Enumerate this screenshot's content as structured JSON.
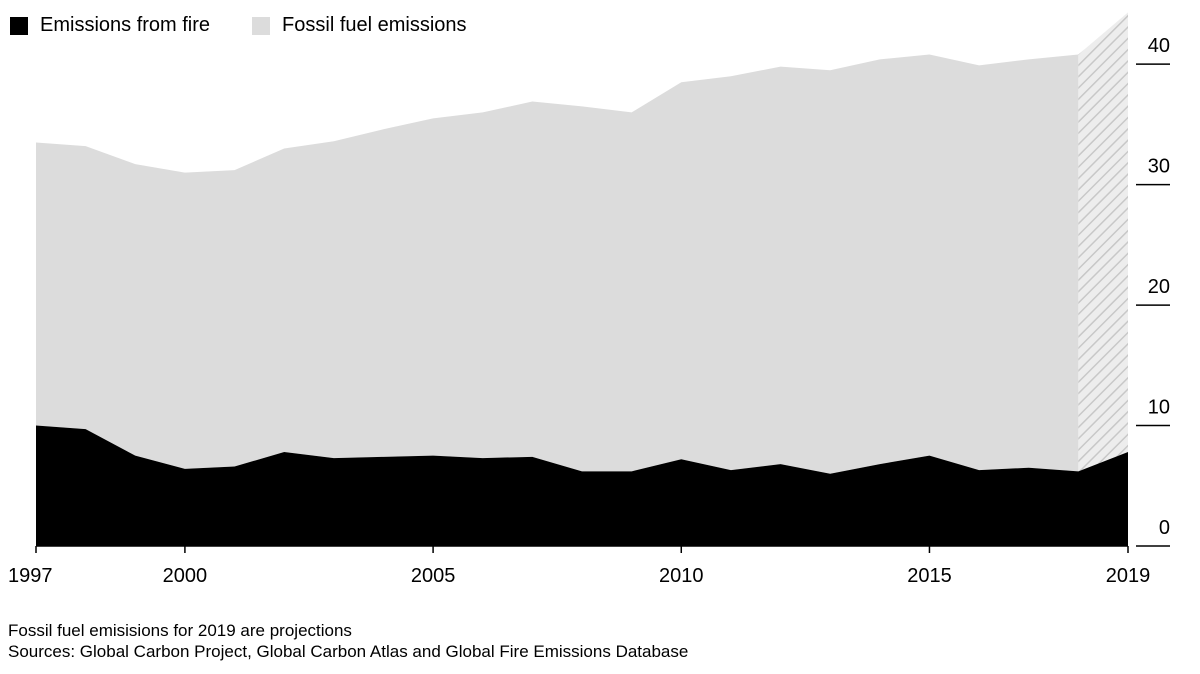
{
  "legend": [
    {
      "label": "Emissions from fire",
      "color": "#000000"
    },
    {
      "label": "Fossil fuel emissions",
      "color": "#dcdcdc"
    }
  ],
  "footnote": "Fossil fuel emisisions for 2019 are projections",
  "sources": "Sources: Global Carbon Project, Global Carbon Atlas and Global Fire Emissions Database",
  "chart_data": {
    "type": "area",
    "stacked": true,
    "x": [
      1997,
      1998,
      1999,
      2000,
      2001,
      2002,
      2003,
      2004,
      2005,
      2006,
      2007,
      2008,
      2009,
      2010,
      2011,
      2012,
      2013,
      2014,
      2015,
      2016,
      2017,
      2018,
      2019
    ],
    "series": [
      {
        "name": "Emissions from fire",
        "color": "#000000",
        "values": [
          10.0,
          9.7,
          7.5,
          6.4,
          6.6,
          7.8,
          7.3,
          7.4,
          7.5,
          7.3,
          7.4,
          6.2,
          6.2,
          7.2,
          6.3,
          6.8,
          6.0,
          6.8,
          7.5,
          6.3,
          6.5,
          6.2,
          7.8
        ]
      },
      {
        "name": "Fossil fuel emissions",
        "color": "#dcdcdc",
        "projected_from": 2018,
        "values": [
          23.5,
          23.5,
          24.2,
          24.6,
          24.6,
          25.2,
          26.3,
          27.2,
          28.0,
          28.7,
          29.5,
          30.3,
          29.8,
          31.3,
          32.7,
          33.0,
          33.5,
          33.6,
          33.3,
          33.6,
          33.9,
          34.6,
          36.5
        ]
      }
    ],
    "xticks": [
      "1997",
      "2000",
      "2005",
      "2010",
      "2015",
      "2019"
    ],
    "yticks": [
      "0",
      "10",
      "20",
      "30",
      "40"
    ],
    "xlim": [
      1997,
      2019
    ],
    "ylim": [
      0,
      44
    ],
    "ylabel_position": "right",
    "xlabel": "",
    "ylabel": ""
  }
}
